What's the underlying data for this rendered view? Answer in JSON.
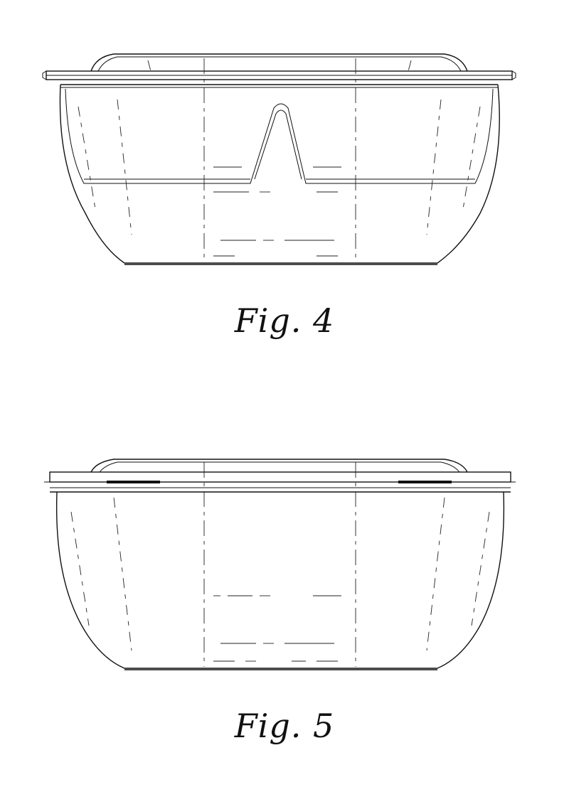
{
  "figures": [
    {
      "id": "fig4",
      "caption": "Fig. 4"
    },
    {
      "id": "fig5",
      "caption": "Fig. 5"
    }
  ]
}
